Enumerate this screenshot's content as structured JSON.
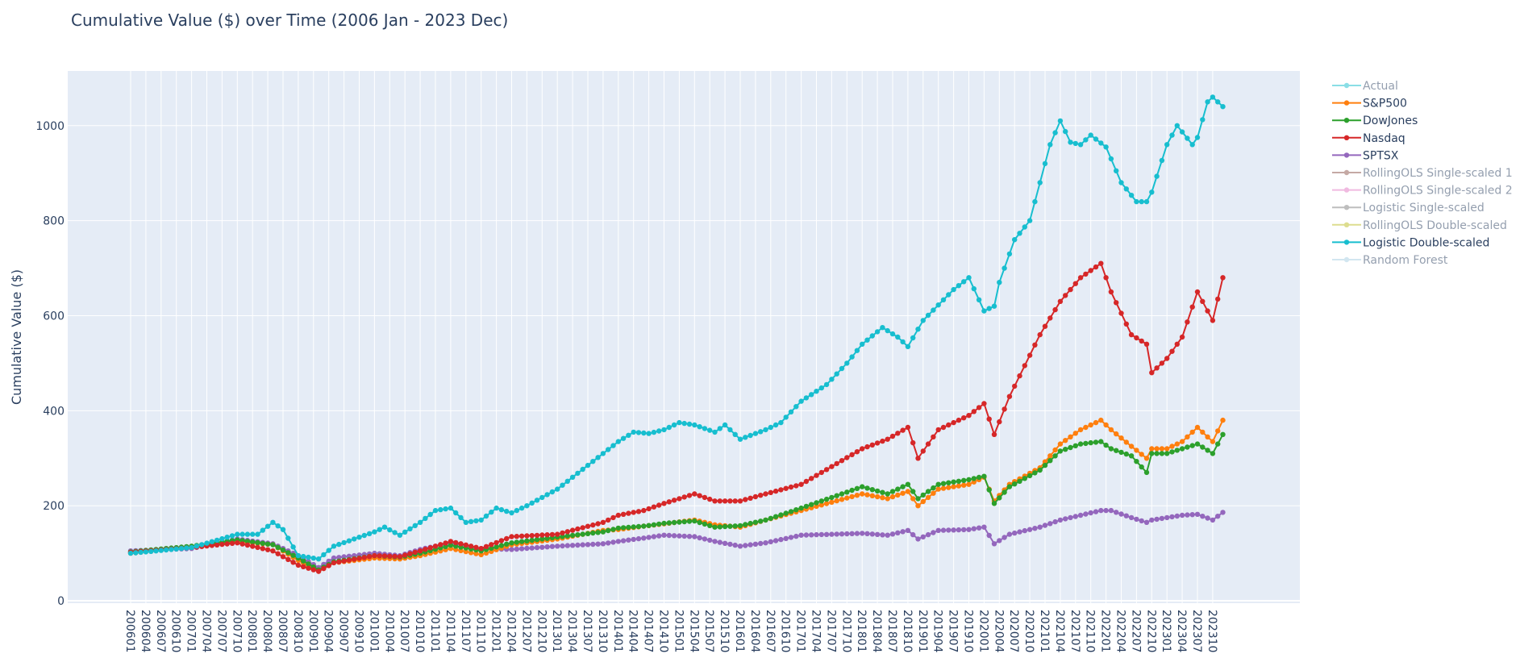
{
  "chart_data": {
    "type": "line",
    "title": "Cumulative Value ($) over Time (2006 Jan - 2023 Dec)",
    "xlabel": "",
    "ylabel": "Cumulative Value ($)",
    "ylim": [
      -5,
      1115
    ],
    "yticks": [
      0,
      200,
      400,
      600,
      800,
      1000
    ],
    "grid": true,
    "legend_position": "right",
    "period_start": "200601",
    "period_end": "202312",
    "xtick_labels": [
      "200601",
      "200604",
      "200607",
      "200610",
      "200701",
      "200704",
      "200707",
      "200710",
      "200801",
      "200804",
      "200807",
      "200810",
      "200901",
      "200904",
      "200907",
      "200910",
      "201001",
      "201004",
      "201007",
      "201010",
      "201101",
      "201104",
      "201107",
      "201110",
      "201201",
      "201204",
      "201207",
      "201210",
      "201301",
      "201304",
      "201307",
      "201310",
      "201401",
      "201404",
      "201407",
      "201410",
      "201501",
      "201504",
      "201507",
      "201510",
      "201601",
      "201604",
      "201607",
      "201610",
      "201701",
      "201704",
      "201707",
      "201710",
      "201801",
      "201804",
      "201807",
      "201810",
      "201901",
      "201904",
      "201907",
      "201910",
      "202001",
      "202004",
      "202007",
      "202010",
      "202101",
      "202104",
      "202107",
      "202110",
      "202201",
      "202204",
      "202207",
      "202210",
      "202301",
      "202304",
      "202307",
      "202310"
    ],
    "series": [
      {
        "name": "Actual",
        "color": "#17becf",
        "hidden": true,
        "points": []
      },
      {
        "name": "S&P500",
        "color": "#ff7f0e",
        "hidden": false,
        "points": [
          [
            "200601",
            100
          ],
          [
            "200701",
            113
          ],
          [
            "200710",
            125
          ],
          [
            "200805",
            118
          ],
          [
            "200810",
            85
          ],
          [
            "200902",
            62
          ],
          [
            "200905",
            80
          ],
          [
            "201001",
            90
          ],
          [
            "201006",
            88
          ],
          [
            "201010",
            95
          ],
          [
            "201104",
            110
          ],
          [
            "201110",
            97
          ],
          [
            "201204",
            118
          ],
          [
            "201301",
            130
          ],
          [
            "201310",
            148
          ],
          [
            "201401",
            150
          ],
          [
            "201406",
            157
          ],
          [
            "201410",
            162
          ],
          [
            "201504",
            170
          ],
          [
            "201508",
            160
          ],
          [
            "201601",
            155
          ],
          [
            "201606",
            170
          ],
          [
            "201701",
            190
          ],
          [
            "201801",
            225
          ],
          [
            "201806",
            215
          ],
          [
            "201810",
            230
          ],
          [
            "201812",
            200
          ],
          [
            "201904",
            235
          ],
          [
            "201910",
            245
          ],
          [
            "202001",
            260
          ],
          [
            "202003",
            210
          ],
          [
            "202006",
            245
          ],
          [
            "202012",
            280
          ],
          [
            "202104",
            330
          ],
          [
            "202108",
            360
          ],
          [
            "202112",
            380
          ],
          [
            "202202",
            360
          ],
          [
            "202206",
            325
          ],
          [
            "202209",
            300
          ],
          [
            "202210",
            320
          ],
          [
            "202301",
            320
          ],
          [
            "202304",
            335
          ],
          [
            "202307",
            365
          ],
          [
            "202310",
            335
          ],
          [
            "202312",
            380
          ]
        ]
      },
      {
        "name": "DowJones",
        "color": "#2ca02c",
        "hidden": false,
        "points": [
          [
            "200601",
            103
          ],
          [
            "200701",
            115
          ],
          [
            "200710",
            128
          ],
          [
            "200805",
            118
          ],
          [
            "200810",
            90
          ],
          [
            "200902",
            65
          ],
          [
            "200905",
            82
          ],
          [
            "201001",
            95
          ],
          [
            "201006",
            92
          ],
          [
            "201010",
            100
          ],
          [
            "201104",
            117
          ],
          [
            "201110",
            105
          ],
          [
            "201204",
            122
          ],
          [
            "201301",
            134
          ],
          [
            "201310",
            145
          ],
          [
            "201401",
            153
          ],
          [
            "201406",
            157
          ],
          [
            "201410",
            163
          ],
          [
            "201504",
            168
          ],
          [
            "201508",
            155
          ],
          [
            "201601",
            158
          ],
          [
            "201606",
            170
          ],
          [
            "201701",
            195
          ],
          [
            "201801",
            240
          ],
          [
            "201806",
            225
          ],
          [
            "201810",
            245
          ],
          [
            "201812",
            215
          ],
          [
            "201904",
            245
          ],
          [
            "201910",
            255
          ],
          [
            "202001",
            262
          ],
          [
            "202003",
            205
          ],
          [
            "202006",
            240
          ],
          [
            "202012",
            275
          ],
          [
            "202104",
            315
          ],
          [
            "202108",
            330
          ],
          [
            "202112",
            335
          ],
          [
            "202202",
            320
          ],
          [
            "202206",
            305
          ],
          [
            "202209",
            270
          ],
          [
            "202210",
            310
          ],
          [
            "202301",
            310
          ],
          [
            "202304",
            320
          ],
          [
            "202307",
            330
          ],
          [
            "202310",
            310
          ],
          [
            "202312",
            350
          ]
        ]
      },
      {
        "name": "Nasdaq",
        "color": "#d62728",
        "hidden": false,
        "points": [
          [
            "200601",
            102
          ],
          [
            "200701",
            112
          ],
          [
            "200710",
            122
          ],
          [
            "200805",
            105
          ],
          [
            "200810",
            75
          ],
          [
            "200902",
            62
          ],
          [
            "200905",
            80
          ],
          [
            "201001",
            95
          ],
          [
            "201006",
            93
          ],
          [
            "201010",
            105
          ],
          [
            "201104",
            125
          ],
          [
            "201110",
            110
          ],
          [
            "201204",
            135
          ],
          [
            "201301",
            140
          ],
          [
            "201310",
            165
          ],
          [
            "201401",
            180
          ],
          [
            "201406",
            190
          ],
          [
            "201410",
            205
          ],
          [
            "201504",
            225
          ],
          [
            "201508",
            210
          ],
          [
            "201601",
            210
          ],
          [
            "201606",
            225
          ],
          [
            "201701",
            245
          ],
          [
            "201801",
            320
          ],
          [
            "201806",
            340
          ],
          [
            "201810",
            365
          ],
          [
            "201812",
            300
          ],
          [
            "201904",
            360
          ],
          [
            "201910",
            390
          ],
          [
            "202001",
            415
          ],
          [
            "202003",
            350
          ],
          [
            "202006",
            430
          ],
          [
            "202012",
            560
          ],
          [
            "202104",
            630
          ],
          [
            "202108",
            680
          ],
          [
            "202112",
            710
          ],
          [
            "202202",
            650
          ],
          [
            "202206",
            560
          ],
          [
            "202209",
            540
          ],
          [
            "202210",
            480
          ],
          [
            "202301",
            510
          ],
          [
            "202304",
            555
          ],
          [
            "202307",
            650
          ],
          [
            "202310",
            590
          ],
          [
            "202312",
            680
          ]
        ]
      },
      {
        "name": "SPTSX",
        "color": "#9467bd",
        "hidden": false,
        "points": [
          [
            "200601",
            105
          ],
          [
            "200701",
            110
          ],
          [
            "200710",
            130
          ],
          [
            "200805",
            120
          ],
          [
            "200810",
            95
          ],
          [
            "200902",
            70
          ],
          [
            "200905",
            90
          ],
          [
            "201001",
            100
          ],
          [
            "201006",
            95
          ],
          [
            "201010",
            108
          ],
          [
            "201104",
            122
          ],
          [
            "201110",
            110
          ],
          [
            "201204",
            108
          ],
          [
            "201301",
            115
          ],
          [
            "201310",
            120
          ],
          [
            "201401",
            125
          ],
          [
            "201406",
            132
          ],
          [
            "201410",
            138
          ],
          [
            "201504",
            135
          ],
          [
            "201508",
            125
          ],
          [
            "201601",
            115
          ],
          [
            "201606",
            122
          ],
          [
            "201701",
            138
          ],
          [
            "201801",
            142
          ],
          [
            "201806",
            138
          ],
          [
            "201810",
            148
          ],
          [
            "201812",
            130
          ],
          [
            "201904",
            148
          ],
          [
            "201910",
            150
          ],
          [
            "202001",
            155
          ],
          [
            "202003",
            120
          ],
          [
            "202006",
            140
          ],
          [
            "202012",
            155
          ],
          [
            "202104",
            170
          ],
          [
            "202108",
            180
          ],
          [
            "202112",
            190
          ],
          [
            "202202",
            190
          ],
          [
            "202206",
            175
          ],
          [
            "202209",
            165
          ],
          [
            "202210",
            170
          ],
          [
            "202301",
            175
          ],
          [
            "202304",
            180
          ],
          [
            "202307",
            182
          ],
          [
            "202310",
            170
          ],
          [
            "202312",
            186
          ]
        ]
      },
      {
        "name": "RollingOLS Single-scaled 1",
        "color": "#8c564b",
        "hidden": true,
        "points": []
      },
      {
        "name": "RollingOLS Single-scaled 2",
        "color": "#e377c2",
        "hidden": true,
        "points": []
      },
      {
        "name": "Logistic Single-scaled",
        "color": "#7f7f7f",
        "hidden": true,
        "points": []
      },
      {
        "name": "RollingOLS Double-scaled",
        "color": "#bcbd22",
        "hidden": true,
        "points": []
      },
      {
        "name": "Logistic Double-scaled",
        "color": "#17becf",
        "hidden": false,
        "points": [
          [
            "200601",
            100
          ],
          [
            "200701",
            112
          ],
          [
            "200710",
            140
          ],
          [
            "200802",
            140
          ],
          [
            "200805",
            165
          ],
          [
            "200807",
            150
          ],
          [
            "200810",
            95
          ],
          [
            "200902",
            88
          ],
          [
            "200905",
            115
          ],
          [
            "200909",
            130
          ],
          [
            "201001",
            145
          ],
          [
            "201003",
            155
          ],
          [
            "201006",
            138
          ],
          [
            "201010",
            165
          ],
          [
            "201101",
            190
          ],
          [
            "201104",
            195
          ],
          [
            "201107",
            165
          ],
          [
            "201110",
            170
          ],
          [
            "201201",
            195
          ],
          [
            "201204",
            185
          ],
          [
            "201207",
            200
          ],
          [
            "201301",
            235
          ],
          [
            "201307",
            285
          ],
          [
            "201310",
            310
          ],
          [
            "201401",
            335
          ],
          [
            "201404",
            355
          ],
          [
            "201407",
            352
          ],
          [
            "201410",
            360
          ],
          [
            "201501",
            375
          ],
          [
            "201504",
            370
          ],
          [
            "201508",
            355
          ],
          [
            "201510",
            370
          ],
          [
            "201601",
            340
          ],
          [
            "201606",
            360
          ],
          [
            "201609",
            375
          ],
          [
            "201701",
            420
          ],
          [
            "201706",
            455
          ],
          [
            "201710",
            500
          ],
          [
            "201801",
            540
          ],
          [
            "201805",
            575
          ],
          [
            "201808",
            555
          ],
          [
            "201810",
            535
          ],
          [
            "201901",
            590
          ],
          [
            "201907",
            655
          ],
          [
            "201910",
            680
          ],
          [
            "202001",
            610
          ],
          [
            "202003",
            620
          ],
          [
            "202004",
            670
          ],
          [
            "202007",
            760
          ],
          [
            "202010",
            800
          ],
          [
            "202012",
            880
          ],
          [
            "202102",
            960
          ],
          [
            "202104",
            1010
          ],
          [
            "202106",
            965
          ],
          [
            "202108",
            960
          ],
          [
            "202110",
            980
          ],
          [
            "202201",
            955
          ],
          [
            "202204",
            880
          ],
          [
            "202207",
            840
          ],
          [
            "202209",
            840
          ],
          [
            "202210",
            860
          ],
          [
            "202301",
            960
          ],
          [
            "202303",
            1000
          ],
          [
            "202306",
            960
          ],
          [
            "202307",
            975
          ],
          [
            "202309",
            1050
          ],
          [
            "202310",
            1060
          ],
          [
            "202312",
            1040
          ]
        ]
      },
      {
        "name": "Random Forest",
        "color": "#a6cee3",
        "hidden": true,
        "points": []
      }
    ]
  }
}
